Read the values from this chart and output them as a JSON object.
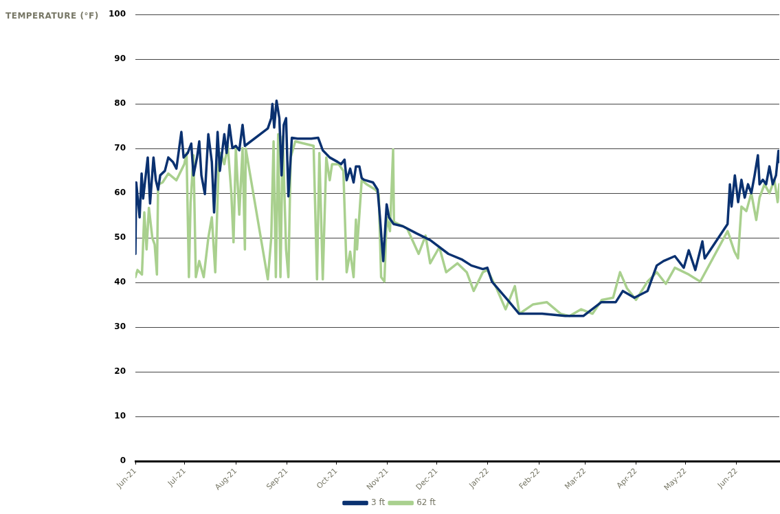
{
  "chart_data": {
    "type": "line",
    "ylabel": "TEMPERATURE (°F)",
    "xlim": [
      "2021-06-01",
      "2022-06-27"
    ],
    "xticks": [
      {
        "value": "2021-06-01",
        "label": "Jun-21"
      },
      {
        "value": "2021-07-01",
        "label": "Jul-21"
      },
      {
        "value": "2021-08-01",
        "label": "Aug-21"
      },
      {
        "value": "2021-09-01",
        "label": "Sep-21"
      },
      {
        "value": "2021-10-01",
        "label": "Oct-21"
      },
      {
        "value": "2021-11-01",
        "label": "Nov-21"
      },
      {
        "value": "2021-12-01",
        "label": "Dec-21"
      },
      {
        "value": "2022-01-01",
        "label": "Jan-22"
      },
      {
        "value": "2022-02-01",
        "label": "Feb-22"
      },
      {
        "value": "2022-03-01",
        "label": "Mar-22"
      },
      {
        "value": "2022-04-01",
        "label": "Apr-22"
      },
      {
        "value": "2022-05-01",
        "label": "May-22"
      },
      {
        "value": "2022-06-01",
        "label": "Jun-22"
      }
    ],
    "ylim": [
      0,
      100
    ],
    "yticks": [
      0,
      10,
      20,
      30,
      40,
      50,
      60,
      70,
      80,
      90,
      100
    ],
    "grid": "y",
    "legend": "bottom",
    "marker": "none",
    "line_style": "solid",
    "series": [
      {
        "name": "3 ft",
        "color": "#0a3170",
        "x": [
          "2021-06-01T00:00",
          "2021-06-01T12:00",
          "2021-06-03T14:00",
          "2021-06-04T19:00",
          "2021-06-05T17:00",
          "2021-06-08T12:00",
          "2021-06-09T22:00",
          "2021-06-12",
          "2021-06-13T10:00",
          "2021-06-14T19:00",
          "2021-06-16T02:00",
          "2021-06-18T22:00",
          "2021-06-21",
          "2021-06-23T19:00",
          "2021-06-25T22:00",
          "2021-06-28T22:00",
          "2021-06-30T07:00",
          "2021-07-02T19:00",
          "2021-07-04T22:00",
          "2021-07-06T07:00",
          "2021-07-08T10:00",
          "2021-07-09T19:00",
          "2021-07-11T02:00",
          "2021-07-13T05:00",
          "2021-07-15T07:00",
          "2021-07-17T10:00",
          "2021-07-18T19:00",
          "2021-07-20T22:00",
          "2021-07-22T07:00",
          "2021-07-25",
          "2021-07-26T10:00",
          "2021-07-28T02:00",
          "2021-07-29T22:00",
          "2021-08-01",
          "2021-08-03T02:00",
          "2021-08-05T02:00",
          "2021-08-06T12:00",
          "2021-08-20T10:00",
          "2021-08-22T12:00",
          "2021-08-23T05:00",
          "2021-08-24T07:00",
          "2021-08-25T17:00",
          "2021-08-27T10:00",
          "2021-08-28T19:00",
          "2021-08-30T02:00",
          "2021-08-31T12:00",
          "2021-09-01T22:00",
          "2021-09-04",
          "2021-09-07T12:00",
          "2021-09-15T19:00",
          "2021-09-20",
          "2021-09-22T19:00",
          "2021-09-27",
          "2021-10-01T19:00",
          "2021-10-03T22:00",
          "2021-10-06",
          "2021-10-07T07:00",
          "2021-10-09T10:00",
          "2021-10-11T12:00",
          "2021-10-12T22:00",
          "2021-10-15",
          "2021-10-16T10:00",
          "2021-10-17T19:00",
          "2021-10-23T07:00",
          "2021-10-26T02:00",
          "2021-10-27T12:00",
          "2021-10-29T12:00",
          "2021-10-31T14:00",
          "2021-11-02",
          "2021-11-04T19:00",
          "2021-11-10T10:00",
          "2021-11-18T17:00",
          "2021-11-27",
          "2021-12-08T02:00",
          "2021-12-16T12:00",
          "2021-12-22",
          "2021-12-29",
          "2021-12-31T17:00",
          "2022-01-03T12:00",
          "2022-01-13",
          "2022-01-20",
          "2022-02-03",
          "2022-02-17",
          "2022-02-28",
          "2022-03-11",
          "2022-03-19T17:00",
          "2022-03-24",
          "2022-03-31",
          "2022-04-08",
          "2022-04-13T14:00",
          "2022-04-17T17:00",
          "2022-04-24T14:00",
          "2022-04-30",
          "2022-05-03",
          "2022-05-07",
          "2022-05-11T07:00",
          "2022-05-12T17:00",
          "2022-05-26T14:00",
          "2022-05-28",
          "2022-05-29",
          "2022-05-31",
          "2022-06-02",
          "2022-06-04",
          "2022-06-06",
          "2022-06-08",
          "2022-06-10",
          "2022-06-12",
          "2022-06-14",
          "2022-06-15",
          "2022-06-17",
          "2022-06-19",
          "2022-06-21",
          "2022-06-23",
          "2022-06-25",
          "2022-06-26T12:00",
          "2022-06-27"
        ],
        "values": [
          46.4,
          62.4,
          54.6,
          64.4,
          58.8,
          68,
          57.7,
          68,
          62.9,
          60.8,
          64,
          65,
          68,
          67,
          65.5,
          73.7,
          68,
          69,
          71.1,
          64,
          68,
          71.6,
          64,
          59.8,
          73.2,
          67,
          55.7,
          73.7,
          65,
          73.2,
          69,
          75.3,
          70.1,
          70.6,
          69.6,
          75.3,
          70.6,
          74.5,
          76.8,
          80,
          74.7,
          80.7,
          76.8,
          64,
          75.3,
          76.8,
          59.3,
          72.4,
          72.2,
          72.2,
          72.4,
          69.6,
          68,
          67,
          66.5,
          67.5,
          62.9,
          65.5,
          62.4,
          66,
          66,
          63.4,
          63,
          62.4,
          60.8,
          54.6,
          44.8,
          57.5,
          54.6,
          53.1,
          52.6,
          51,
          49.5,
          46.4,
          45.1,
          43.8,
          43,
          43.3,
          40.2,
          36.1,
          33,
          33,
          32.5,
          32.5,
          35.6,
          35.6,
          38.1,
          36.6,
          38.1,
          43.8,
          44.8,
          45.9,
          43.3,
          47.2,
          42.8,
          49.2,
          45.4,
          53.1,
          62,
          57,
          64,
          58,
          63,
          59,
          62,
          60,
          64,
          68.5,
          62,
          63,
          62,
          66,
          62,
          64,
          69.5,
          67
        ]
      },
      {
        "name": "62 ft",
        "color": "#a9d08e",
        "x": [
          "2021-06-01T00:00",
          "2021-06-02T07:00",
          "2021-06-05",
          "2021-06-06T10:00",
          "2021-06-07T19:00",
          "2021-06-09T05:00",
          "2021-06-11T07:00",
          "2021-06-12T17:00",
          "2021-06-14T02:00",
          "2021-06-14T19:00",
          "2021-06-17T12:00",
          "2021-06-21",
          "2021-06-25T22:00",
          "2021-06-30T17:00",
          "2021-07-02T02:00",
          "2021-07-03T12:00",
          "2021-07-04T12:00",
          "2021-07-06T07:00",
          "2021-07-07T17:00",
          "2021-07-09T19:00",
          "2021-07-12T12:00",
          "2021-07-15T07:00",
          "2021-07-17T10:00",
          "2021-07-19T12:00",
          "2021-07-21T14:00",
          "2021-07-23",
          "2021-07-25",
          "2021-07-27T02:00",
          "2021-07-29T05:00",
          "2021-07-30T14:00",
          "2021-08-01",
          "2021-08-03T02:00",
          "2021-08-05T02:00",
          "2021-08-06T12:00",
          "2021-08-07",
          "2021-08-20T10:00",
          "2021-08-22T12:00",
          "2021-08-23T22:00",
          "2021-08-25T07:00",
          "2021-08-26T17:00",
          "2021-08-28T02:00",
          "2021-08-29T12:00",
          "2021-08-31T12:00",
          "2021-09-01T22:00",
          "2021-09-03T07:00",
          "2021-09-06T02:00",
          "2021-09-11T14:00",
          "2021-09-17T05:00",
          "2021-09-19T07:00",
          "2021-09-20T17:00",
          "2021-09-22T19:00",
          "2021-09-24T22:00",
          "2021-09-27",
          "2021-09-28T10:00",
          "2021-10-02T12:00",
          "2021-10-05T07:00",
          "2021-10-07T07:00",
          "2021-10-09T10:00",
          "2021-10-11T12:00",
          "2021-10-12T22:00",
          "2021-10-13T14:00",
          "2021-10-16T10:00",
          "2021-10-19T19:00",
          "2021-10-24T17:00",
          "2021-10-26T19:00",
          "2021-10-28T05:00",
          "2021-10-30T05:00",
          "2021-10-31T14:00",
          "2021-11-02T14:00",
          "2021-11-04T12:00",
          "2021-11-05",
          "2021-11-13",
          "2021-11-20",
          "2021-11-24T05:00",
          "2021-11-27",
          "2021-12-02T14:00",
          "2021-12-06T17:00",
          "2021-12-13T14:00",
          "2021-12-19T05:00",
          "2021-12-23T10:00",
          "2021-12-29",
          "2021-12-31T17:00",
          "2022-01-06T07:00",
          "2022-01-11T19:00",
          "2022-01-17T10:00",
          "2022-01-20T05:00",
          "2022-01-28T12:00",
          "2022-02-05T19:00",
          "2022-02-14T05:00",
          "2022-02-19T17:00",
          "2022-02-26T17:00",
          "2022-03-05T14:00",
          "2022-03-11T05:00",
          "2022-03-18T02:00",
          "2022-03-22T07:00",
          "2022-03-26T12:00",
          "2022-04-01",
          "2022-04-08",
          "2022-04-13T14:00",
          "2022-04-19T02:00",
          "2022-04-24T14:00",
          "2022-05-03",
          "2022-05-10",
          "2022-05-26T14:00",
          "2022-05-30T19:00",
          "2022-06-01T22:00",
          "2022-06-04",
          "2022-06-07",
          "2022-06-10",
          "2022-06-13",
          "2022-06-15",
          "2022-06-18",
          "2022-06-21",
          "2022-06-24",
          "2022-06-26",
          "2022-06-27"
        ],
        "values": [
          41.2,
          42.8,
          41.8,
          55.7,
          47.4,
          56.7,
          50,
          48.5,
          41.8,
          61.9,
          62.4,
          64.4,
          62.9,
          66.5,
          69,
          41.2,
          57.7,
          68.5,
          41.2,
          44.8,
          41.2,
          50,
          54.6,
          42.3,
          66.5,
          69,
          66.5,
          70.6,
          60.3,
          49,
          70.1,
          55.2,
          70.1,
          47.4,
          70,
          40.7,
          50,
          71.6,
          41.2,
          73.2,
          41.2,
          72.7,
          47.4,
          41.2,
          68,
          71.6,
          71.1,
          70.6,
          40.7,
          69,
          40.7,
          68,
          62.9,
          66.5,
          66.5,
          65,
          42.3,
          46.9,
          41.2,
          54.1,
          47.4,
          62.9,
          61.9,
          60.8,
          59.8,
          41.2,
          40.2,
          54.6,
          51.5,
          69.8,
          53.6,
          52.1,
          46.4,
          50.5,
          44.3,
          47.9,
          42.3,
          44.3,
          42.3,
          38.1,
          42.3,
          42.8,
          38.7,
          34,
          39.2,
          33,
          35.1,
          35.6,
          33,
          32.5,
          34,
          33,
          36.1,
          36.6,
          42.3,
          38.7,
          36.1,
          40.2,
          42.3,
          39.7,
          43.3,
          41.8,
          40.2,
          51.5,
          46.9,
          45.4,
          57,
          56,
          60,
          54,
          59,
          62,
          60,
          63,
          58,
          62
        ]
      }
    ]
  }
}
